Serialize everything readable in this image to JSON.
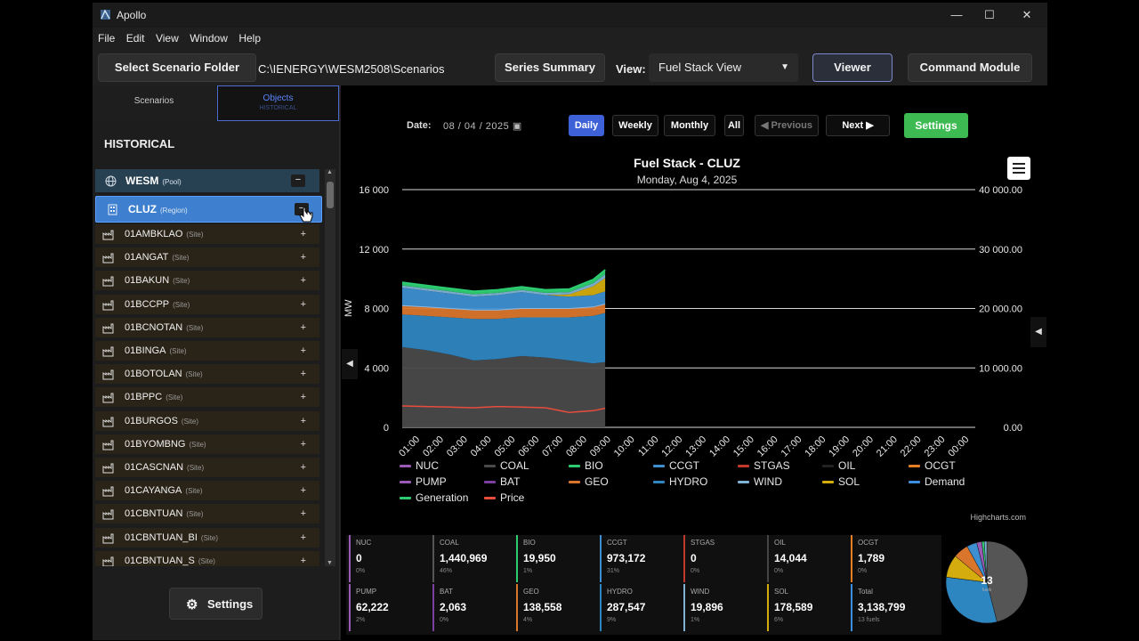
{
  "app": {
    "title": "Apollo"
  },
  "menu": [
    "File",
    "Edit",
    "View",
    "Window",
    "Help"
  ],
  "toolbar": {
    "select_folder": "Select Scenario Folder",
    "path": "C:\\IENERGY\\WESM2508\\Scenarios",
    "series_summary": "Series Summary",
    "view_label": "View:",
    "view_value": "Fuel Stack View",
    "viewer": "Viewer",
    "command_module": "Command Module"
  },
  "left": {
    "tabs": {
      "scenarios": "Scenarios",
      "objects": "Objects",
      "objects_sub": "HISTORICAL"
    },
    "heading": "HISTORICAL",
    "pool": {
      "name": "WESM",
      "kind": "(Pool)"
    },
    "region": {
      "name": "CLUZ",
      "kind": "(Region)"
    },
    "sites": [
      "01AMBKLAO",
      "01ANGAT",
      "01BAKUN",
      "01BCCPP",
      "01BCNOTAN",
      "01BINGA",
      "01BOTOLAN",
      "01BPPC",
      "01BURGOS",
      "01BYOMBNG",
      "01CASCNAN",
      "01CAYANGA",
      "01CBNTUAN",
      "01CBNTUAN_BI",
      "01CBNTUAN_S"
    ],
    "site_kind": "(Site)",
    "settings": "Settings"
  },
  "period": {
    "date_label": "Date:",
    "date_value": "08 / 04 / 2025",
    "daily": "Daily",
    "weekly": "Weekly",
    "monthly": "Monthly",
    "all": "All",
    "previous": "◀ Previous",
    "next": "Next ▶",
    "settings": "Settings"
  },
  "chart_data": {
    "type": "area",
    "title": "Fuel Stack - CLUZ",
    "subtitle": "Monday, Aug 4, 2025",
    "ylabel": "MW",
    "ylim": [
      0,
      16000
    ],
    "y_ticks": [
      "16 000",
      "12 000",
      "8 000",
      "4 000",
      "0"
    ],
    "y2lim": [
      0,
      40000
    ],
    "y2_ticks": [
      "40 000.00",
      "30 000.00",
      "20 000.00",
      "10 000.00",
      "0.00"
    ],
    "x_ticks": [
      "01:00",
      "02:00",
      "03:00",
      "04:00",
      "05:00",
      "06:00",
      "07:00",
      "08:00",
      "09:00",
      "10:00",
      "11:00",
      "12:00",
      "13:00",
      "14:00",
      "15:00",
      "16:00",
      "17:00",
      "18:00",
      "19:00",
      "20:00",
      "21:00",
      "22:00",
      "23:00",
      "00:00"
    ],
    "x": [
      0,
      1,
      2,
      3,
      4,
      5,
      6,
      7,
      8,
      8.5
    ],
    "series": [
      {
        "name": "COAL",
        "values": [
          5400,
          5200,
          4900,
          4500,
          4600,
          4800,
          4700,
          4500,
          4300,
          4400
        ]
      },
      {
        "name": "HYDRO",
        "values": [
          2200,
          2300,
          2500,
          2800,
          2700,
          2600,
          2700,
          2900,
          3200,
          3300
        ]
      },
      {
        "name": "GEO",
        "values": [
          600,
          600,
          600,
          600,
          600,
          600,
          600,
          600,
          600,
          600
        ]
      },
      {
        "name": "CCGT",
        "values": [
          1200,
          1100,
          1000,
          900,
          1000,
          1100,
          900,
          800,
          800,
          850
        ]
      },
      {
        "name": "SOL",
        "values": [
          0,
          0,
          0,
          0,
          0,
          0,
          0,
          150,
          600,
          900
        ]
      },
      {
        "name": "WIND",
        "values": [
          150,
          150,
          150,
          150,
          150,
          150,
          150,
          150,
          200,
          250
        ]
      },
      {
        "name": "BIO",
        "values": [
          200,
          200,
          200,
          200,
          200,
          200,
          200,
          200,
          250,
          300
        ]
      }
    ],
    "price_values": [
      3600,
      3500,
      3400,
      3300,
      3500,
      3400,
      3300,
      2500,
      2800,
      3200
    ],
    "legend": [
      {
        "name": "NUC",
        "color": "#9b59b6"
      },
      {
        "name": "COAL",
        "color": "#4a4a4a"
      },
      {
        "name": "BIO",
        "color": "#2ecc71"
      },
      {
        "name": "CCGT",
        "color": "#3d8fd1"
      },
      {
        "name": "STGAS",
        "color": "#c0392b"
      },
      {
        "name": "OIL",
        "color": "#222222"
      },
      {
        "name": "OCGT",
        "color": "#e67e22"
      },
      {
        "name": "PUMP",
        "color": "#9b59b6"
      },
      {
        "name": "BAT",
        "color": "#7b3fa0"
      },
      {
        "name": "GEO",
        "color": "#d9762b"
      },
      {
        "name": "HYDRO",
        "color": "#2e86c1"
      },
      {
        "name": "WIND",
        "color": "#7fb3d5"
      },
      {
        "name": "SOL",
        "color": "#d4ac0d"
      },
      {
        "name": "Demand",
        "color": "#3b8fe0"
      },
      {
        "name": "Generation",
        "color": "#2ecc71"
      },
      {
        "name": "Price",
        "color": "#e74c3c"
      }
    ],
    "credit": "Highcharts.com"
  },
  "summary": [
    {
      "label": "NUC",
      "value": "0",
      "pct": "0%",
      "color": "#9b59b6"
    },
    {
      "label": "COAL",
      "value": "1,440,969",
      "pct": "46%",
      "color": "#555555"
    },
    {
      "label": "BIO",
      "value": "19,950",
      "pct": "1%",
      "color": "#2ecc71"
    },
    {
      "label": "CCGT",
      "value": "973,172",
      "pct": "31%",
      "color": "#3d8fd1"
    },
    {
      "label": "STGAS",
      "value": "0",
      "pct": "0%",
      "color": "#c0392b"
    },
    {
      "label": "OIL",
      "value": "14,044",
      "pct": "0%",
      "color": "#444444"
    },
    {
      "label": "OCGT",
      "value": "1,789",
      "pct": "0%",
      "color": "#e67e22"
    },
    {
      "label": "PUMP",
      "value": "62,222",
      "pct": "2%",
      "color": "#9b59b6"
    },
    {
      "label": "BAT",
      "value": "2,063",
      "pct": "0%",
      "color": "#7b3fa0"
    },
    {
      "label": "GEO",
      "value": "138,558",
      "pct": "4%",
      "color": "#d9762b"
    },
    {
      "label": "HYDRO",
      "value": "287,547",
      "pct": "9%",
      "color": "#2e86c1"
    },
    {
      "label": "WIND",
      "value": "19,896",
      "pct": "1%",
      "color": "#7fb3d5"
    },
    {
      "label": "SOL",
      "value": "178,589",
      "pct": "6%",
      "color": "#d4ac0d"
    },
    {
      "label": "Total",
      "value": "3,138,799",
      "pct": "13 fuels",
      "color": "#3b8fe0"
    }
  ],
  "pie": {
    "center": "13",
    "center_sub": "fuels"
  }
}
